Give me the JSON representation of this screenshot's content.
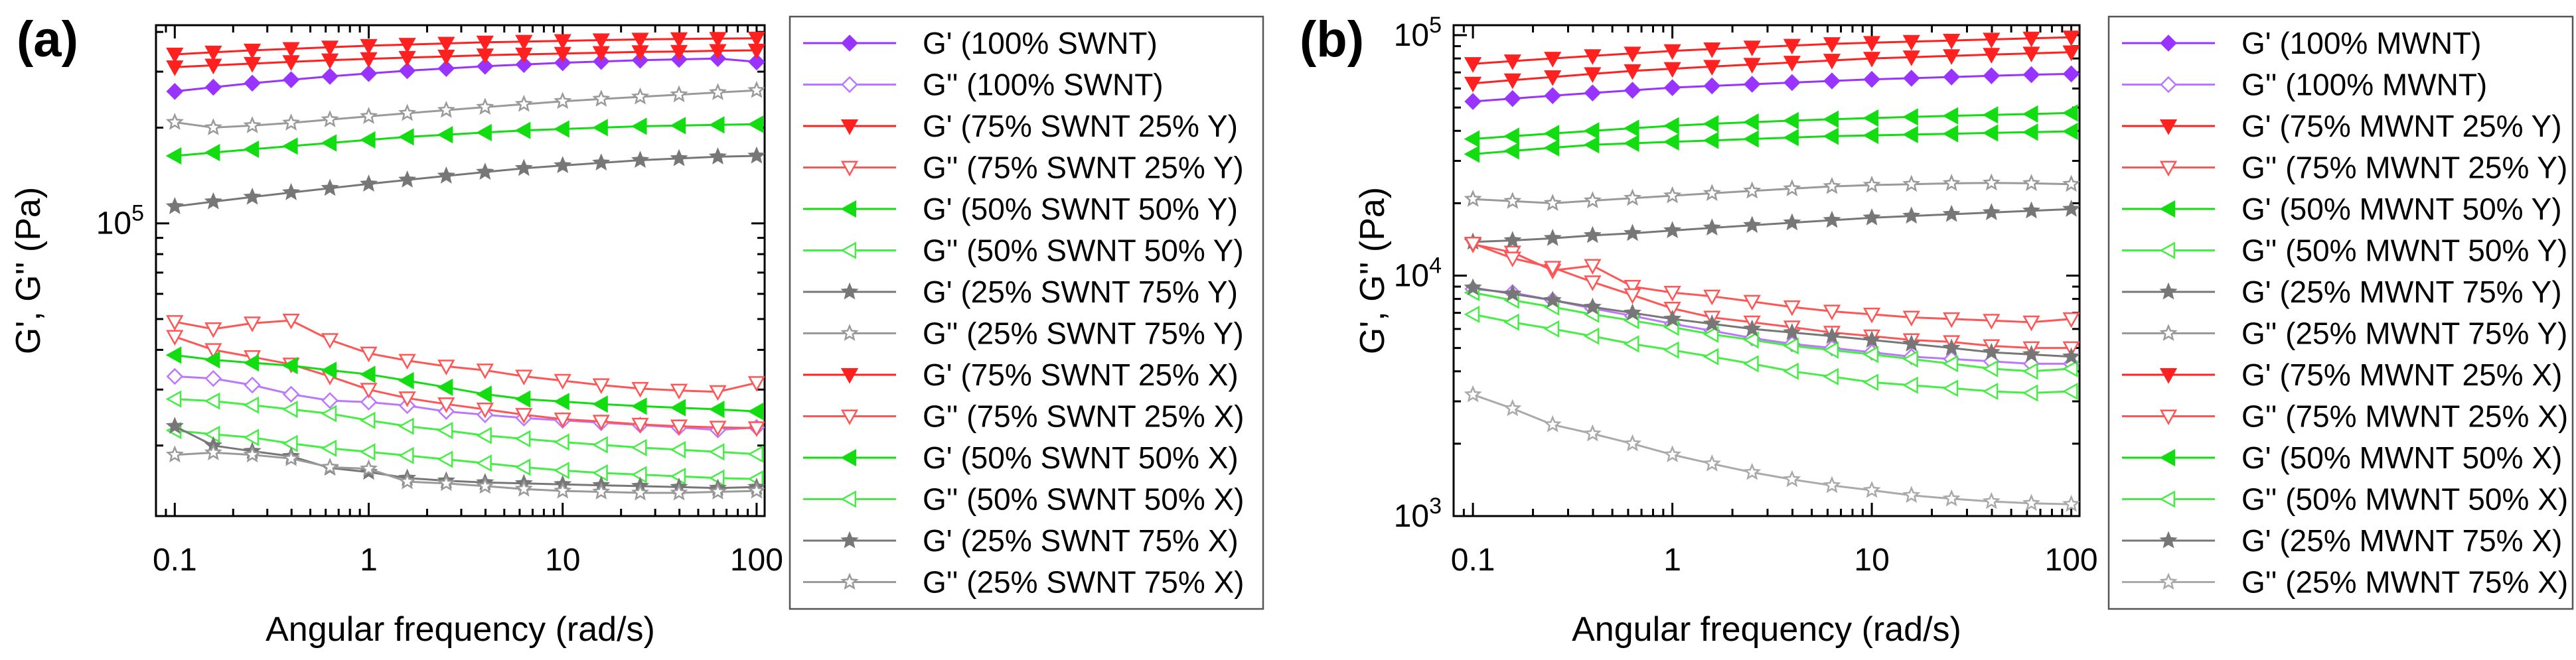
{
  "colors": {
    "purple": "#9933ff",
    "lavender": "#bb77ff",
    "red": "#ff2020",
    "lightred": "#ff5555",
    "green": "#11dd11",
    "lightgreen": "#44ee44",
    "darkgray": "#777777",
    "gray": "#9a9a9a",
    "lightgray": "#aaaaaa"
  },
  "chart_data": [
    {
      "type": "line",
      "panel_label": "(a)",
      "xlabel": "Angular frequency (rad/s)",
      "ylabel": "G', G'' (Pa)",
      "x_scale": "log",
      "y_scale": "log",
      "xlim": [
        0.08,
        110
      ],
      "ylim": [
        12000,
        420000
      ],
      "x_ticks": [
        0.1,
        1,
        10,
        100
      ],
      "x_tick_labels": [
        "0.1",
        "1",
        "10",
        "100"
      ],
      "y_ticks": [
        100000
      ],
      "y_tick_labels": [
        "10^5"
      ],
      "legend_position": "right",
      "x": [
        0.1,
        0.158,
        0.251,
        0.398,
        0.631,
        1,
        1.58,
        2.51,
        3.98,
        6.31,
        10,
        15.8,
        25.1,
        39.8,
        63.1,
        100
      ],
      "series": [
        {
          "name": "G' (100% SWNT)",
          "color": "purple",
          "marker": "diamond",
          "filled": true,
          "values": [
            260000,
            268000,
            276000,
            283000,
            290000,
            296000,
            302000,
            307000,
            312000,
            316000,
            320000,
            323000,
            326000,
            328000,
            330000,
            322000
          ]
        },
        {
          "name": "G'' (100% SWNT)",
          "color": "lavender",
          "marker": "diamond",
          "filled": false,
          "values": [
            33000,
            32500,
            31000,
            29000,
            27700,
            27400,
            26700,
            25600,
            25000,
            24400,
            24000,
            23600,
            23200,
            22800,
            22400,
            22800
          ]
        },
        {
          "name": "G' (75% SWNT 25% Y)",
          "color": "red",
          "marker": "triangle-down",
          "filled": true,
          "values": [
            340000,
            345000,
            350000,
            354000,
            358000,
            362000,
            365000,
            368000,
            371000,
            373000,
            375000,
            377000,
            379000,
            380000,
            381000,
            382000
          ]
        },
        {
          "name": "G'' (75% SWNT 25% Y)",
          "color": "lightred",
          "marker": "triangle-down",
          "filled": false,
          "values": [
            49000,
            46500,
            48500,
            49500,
            43000,
            39000,
            37000,
            35500,
            34500,
            33000,
            32000,
            31000,
            30200,
            29800,
            29500,
            31500
          ]
        },
        {
          "name": "G' (50% SWNT 50% Y)",
          "color": "green",
          "marker": "triangle-left",
          "filled": true,
          "values": [
            163000,
            167000,
            171000,
            175000,
            179000,
            183000,
            187000,
            190000,
            193000,
            196000,
            198000,
            200000,
            202000,
            203000,
            204000,
            205000
          ]
        },
        {
          "name": "G'' (50% SWNT 50% Y)",
          "color": "lightgreen",
          "marker": "triangle-left",
          "filled": false,
          "values": [
            28000,
            27600,
            26800,
            26000,
            25200,
            24000,
            23000,
            22300,
            21500,
            21000,
            20500,
            20100,
            19700,
            19400,
            19100,
            18800
          ]
        },
        {
          "name": "G' (25% SWNT 75% Y)",
          "color": "darkgray",
          "marker": "star",
          "filled": true,
          "values": [
            113000,
            117000,
            121000,
            125000,
            129000,
            133000,
            137000,
            141000,
            145000,
            149000,
            152000,
            155000,
            158000,
            160000,
            162000,
            163000
          ]
        },
        {
          "name": "G'' (25% SWNT 75% Y)",
          "color": "gray",
          "marker": "star",
          "filled": false,
          "values": [
            208000,
            200000,
            203000,
            207000,
            212000,
            217000,
            222000,
            227000,
            232000,
            237000,
            242000,
            246000,
            250000,
            254000,
            258000,
            262000
          ]
        },
        {
          "name": "G' (75% SWNT 25% X)",
          "color": "red",
          "marker": "triangle-down",
          "filled": true,
          "values": [
            310000,
            314000,
            318000,
            322000,
            326000,
            329000,
            332000,
            335000,
            338000,
            340000,
            342000,
            344000,
            346000,
            347000,
            349000,
            350000
          ]
        },
        {
          "name": "G'' (75% SWNT 25% X)",
          "color": "lightred",
          "marker": "triangle-down",
          "filled": false,
          "values": [
            44000,
            40000,
            38000,
            36000,
            33000,
            30000,
            28200,
            27000,
            26000,
            25000,
            24200,
            23800,
            23300,
            23000,
            22800,
            22700
          ]
        },
        {
          "name": "G' (50% SWNT 50% X)",
          "color": "green",
          "marker": "triangle-left",
          "filled": true,
          "values": [
            38500,
            37200,
            36400,
            35700,
            34500,
            33500,
            32000,
            30500,
            29000,
            28000,
            27500,
            27000,
            26600,
            26300,
            26000,
            25600
          ]
        },
        {
          "name": "G'' (50% SWNT 50% X)",
          "color": "lightgreen",
          "marker": "triangle-left",
          "filled": false,
          "values": [
            22300,
            21700,
            21200,
            20300,
            19600,
            19100,
            18600,
            18100,
            17600,
            17100,
            16700,
            16400,
            16200,
            16000,
            15800,
            15700
          ]
        },
        {
          "name": "G' (25% SWNT 75% X)",
          "color": "darkgray",
          "marker": "star",
          "filled": true,
          "values": [
            23000,
            20000,
            19200,
            18500,
            17000,
            16500,
            15800,
            15500,
            15300,
            15200,
            15100,
            15000,
            14900,
            14800,
            14700,
            14800
          ]
        },
        {
          "name": "G'' (25% SWNT 75% X)",
          "color": "gray",
          "marker": "star",
          "filled": false,
          "values": [
            18700,
            19000,
            18700,
            18200,
            17100,
            16900,
            15400,
            15200,
            14900,
            14600,
            14400,
            14300,
            14200,
            14200,
            14300,
            14400
          ]
        }
      ]
    },
    {
      "type": "line",
      "panel_label": "(b)",
      "xlabel": "Angular frequency (rad/s)",
      "ylabel": "G', G'' (Pa)",
      "x_scale": "log",
      "y_scale": "log",
      "xlim": [
        0.08,
        110
      ],
      "ylim": [
        1000,
        110000
      ],
      "x_ticks": [
        0.1,
        1,
        10,
        100
      ],
      "x_tick_labels": [
        "0.1",
        "1",
        "10",
        "100"
      ],
      "y_ticks": [
        1000,
        10000,
        100000
      ],
      "y_tick_labels": [
        "10^3",
        "10^4",
        "10^5"
      ],
      "legend_position": "right",
      "x": [
        0.1,
        0.158,
        0.251,
        0.398,
        0.631,
        1,
        1.58,
        2.51,
        3.98,
        6.31,
        10,
        15.8,
        25.1,
        39.8,
        63.1,
        100
      ],
      "series": [
        {
          "name": "G' (100% MWNT)",
          "color": "purple",
          "marker": "diamond",
          "filled": true,
          "values": [
            53000,
            54500,
            56000,
            57500,
            59000,
            60500,
            61500,
            62500,
            63500,
            64500,
            65500,
            66200,
            67000,
            67800,
            68500,
            69000
          ]
        },
        {
          "name": "G'' (100% MWNT)",
          "color": "lavender",
          "marker": "diamond",
          "filled": false,
          "values": [
            8800,
            8500,
            7900,
            7300,
            6800,
            6300,
            5900,
            5500,
            5200,
            5000,
            4800,
            4600,
            4500,
            4400,
            4300,
            4300
          ]
        },
        {
          "name": "G' (75% MWNT 25% Y)",
          "color": "red",
          "marker": "triangle-down",
          "filled": true,
          "values": [
            76000,
            78000,
            80000,
            82000,
            84000,
            86000,
            87500,
            89000,
            90500,
            92000,
            93000,
            94000,
            95000,
            96000,
            97000,
            98000
          ]
        },
        {
          "name": "G'' (75% MWNT 25% Y)",
          "color": "lightred",
          "marker": "triangle-down",
          "filled": false,
          "values": [
            13500,
            12500,
            10500,
            11000,
            9000,
            8500,
            8200,
            7800,
            7400,
            7100,
            6900,
            6700,
            6600,
            6500,
            6400,
            6600
          ]
        },
        {
          "name": "G' (50% MWNT 50% Y)",
          "color": "green",
          "marker": "triangle-left",
          "filled": true,
          "values": [
            32000,
            33000,
            34000,
            35000,
            35500,
            36000,
            36500,
            37000,
            37500,
            38000,
            38300,
            38600,
            38900,
            39200,
            39500,
            39800
          ]
        },
        {
          "name": "G'' (50% MWNT 50% Y)",
          "color": "lightgreen",
          "marker": "triangle-left",
          "filled": false,
          "values": [
            6900,
            6400,
            6000,
            5600,
            5200,
            4900,
            4600,
            4300,
            4000,
            3800,
            3600,
            3500,
            3400,
            3300,
            3250,
            3300
          ]
        },
        {
          "name": "G' (25% MWNT 75% Y)",
          "color": "darkgray",
          "marker": "star",
          "filled": true,
          "values": [
            13800,
            14000,
            14300,
            14700,
            15000,
            15400,
            15800,
            16200,
            16600,
            17000,
            17400,
            17700,
            18000,
            18300,
            18600,
            18900
          ]
        },
        {
          "name": "G'' (25% MWNT 75% Y)",
          "color": "gray",
          "marker": "star",
          "filled": false,
          "values": [
            20800,
            20400,
            20000,
            20500,
            21000,
            21500,
            22000,
            22500,
            23000,
            23500,
            23800,
            24000,
            24200,
            24300,
            24200,
            24000
          ]
        },
        {
          "name": "G' (75% MWNT 25% X)",
          "color": "red",
          "marker": "triangle-down",
          "filled": true,
          "values": [
            63000,
            65000,
            67000,
            69000,
            71000,
            72500,
            74000,
            75500,
            77000,
            78500,
            80000,
            81000,
            82000,
            83000,
            84000,
            85000
          ]
        },
        {
          "name": "G'' (75% MWNT 25% X)",
          "color": "lightred",
          "marker": "triangle-down",
          "filled": false,
          "values": [
            13600,
            11800,
            10800,
            9400,
            8300,
            7300,
            6700,
            6400,
            6100,
            5800,
            5600,
            5400,
            5300,
            5100,
            5000,
            5000
          ]
        },
        {
          "name": "G' (50% MWNT 50% X)",
          "color": "green",
          "marker": "triangle-left",
          "filled": true,
          "values": [
            37000,
            38000,
            39000,
            40000,
            41000,
            42000,
            42800,
            43500,
            44100,
            44700,
            45200,
            45700,
            46200,
            46600,
            47000,
            47500
          ]
        },
        {
          "name": "G'' (50% MWNT 50% X)",
          "color": "lightgreen",
          "marker": "triangle-left",
          "filled": false,
          "values": [
            8500,
            7900,
            7400,
            6900,
            6500,
            6100,
            5700,
            5400,
            5100,
            4900,
            4700,
            4500,
            4300,
            4100,
            4000,
            4100
          ]
        },
        {
          "name": "G' (25% MWNT 75% X)",
          "color": "darkgray",
          "marker": "star",
          "filled": true,
          "values": [
            8900,
            8400,
            7900,
            7400,
            7000,
            6600,
            6300,
            6000,
            5800,
            5600,
            5400,
            5200,
            5000,
            4800,
            4700,
            4600
          ]
        },
        {
          "name": "G'' (25% MWNT 75% X)",
          "color": "lightgray",
          "marker": "star",
          "filled": false,
          "values": [
            3200,
            2800,
            2400,
            2200,
            2000,
            1800,
            1650,
            1520,
            1420,
            1340,
            1280,
            1220,
            1180,
            1150,
            1130,
            1120
          ]
        }
      ]
    }
  ]
}
